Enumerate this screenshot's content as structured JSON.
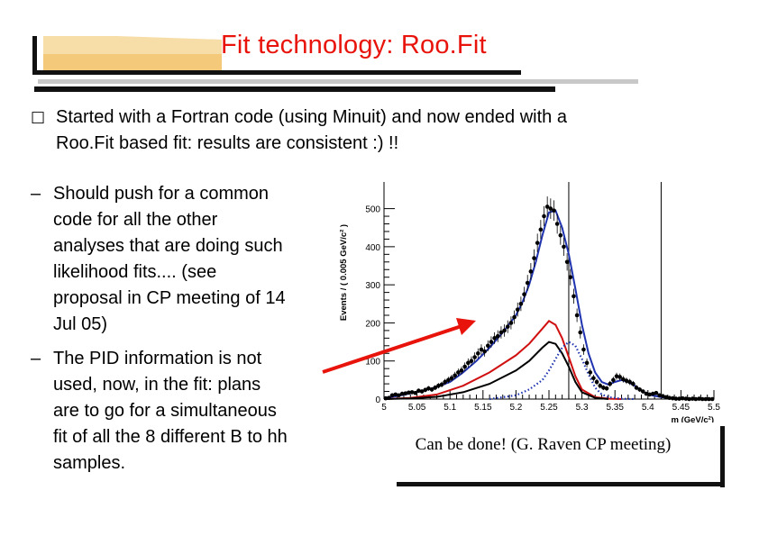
{
  "slide": {
    "title": "Fit technology: Roo.Fit",
    "bullet1_symbol": "□",
    "bullet1_lines": [
      "Started with a Fortran code (using Minuit) and now ended with a",
      "Roo.Fit based fit: results are consistent  :) !!"
    ],
    "sub1_symbol": "–",
    "sub1_lines": [
      "Should push for a common",
      "code for all the other",
      "analyses that are doing such",
      "likelihood fits.... (see",
      "proposal in CP meeting of 14",
      "Jul 05)"
    ],
    "sub2_symbol": "–",
    "sub2_lines": [
      "The PID information is not",
      "used, now, in the fit: plans",
      "are to go for a simultaneous",
      "fit of all the 8 different B to hh",
      "samples."
    ],
    "caption": "Can be done! (G. Raven CP meeting)",
    "arrow_color": "#e8140c"
  },
  "chart_data": {
    "type": "line",
    "ylabel": "Events / ( 0.005 GeV/c² )",
    "xlabel": "m  (GeV/c²)",
    "xlim": [
      5.0,
      5.5
    ],
    "ylim": [
      0,
      570
    ],
    "xticks": [
      "5",
      "5.05",
      "5.1",
      "5.15",
      "5.2",
      "5.25",
      "5.3",
      "5.35",
      "5.4",
      "5.45",
      "5.5"
    ],
    "yticks": [
      "0",
      "100",
      "200",
      "300",
      "400",
      "500"
    ],
    "vertical_lines": [
      5.28,
      5.42
    ],
    "data_points": {
      "x": [
        5.0,
        5.005,
        5.01,
        5.015,
        5.02,
        5.025,
        5.03,
        5.035,
        5.04,
        5.045,
        5.05,
        5.055,
        5.06,
        5.065,
        5.07,
        5.075,
        5.08,
        5.085,
        5.09,
        5.095,
        5.1,
        5.105,
        5.11,
        5.115,
        5.12,
        5.125,
        5.13,
        5.135,
        5.14,
        5.145,
        5.15,
        5.155,
        5.16,
        5.165,
        5.17,
        5.175,
        5.18,
        5.185,
        5.19,
        5.195,
        5.2,
        5.205,
        5.21,
        5.215,
        5.22,
        5.225,
        5.23,
        5.235,
        5.24,
        5.245,
        5.25,
        5.255,
        5.26,
        5.265,
        5.27,
        5.275,
        5.28,
        5.285,
        5.29,
        5.295,
        5.3,
        5.305,
        5.31,
        5.315,
        5.32,
        5.325,
        5.33,
        5.335,
        5.34,
        5.345,
        5.35,
        5.355,
        5.36,
        5.365,
        5.37,
        5.375,
        5.38,
        5.385,
        5.39,
        5.395,
        5.4,
        5.405,
        5.41,
        5.415,
        5.42,
        5.425,
        5.43,
        5.435,
        5.44,
        5.445,
        5.45,
        5.455,
        5.46,
        5.465,
        5.47,
        5.475,
        5.48,
        5.485,
        5.49,
        5.495
      ],
      "y": [
        2,
        3,
        10,
        12,
        10,
        14,
        15,
        17,
        18,
        16,
        22,
        20,
        24,
        28,
        25,
        30,
        35,
        38,
        45,
        50,
        55,
        62,
        70,
        75,
        85,
        95,
        100,
        110,
        120,
        130,
        125,
        140,
        150,
        160,
        165,
        175,
        180,
        190,
        200,
        215,
        235,
        250,
        275,
        305,
        335,
        370,
        410,
        445,
        480,
        505,
        500,
        495,
        460,
        430,
        400,
        360,
        320,
        270,
        220,
        175,
        130,
        95,
        70,
        55,
        45,
        35,
        30,
        28,
        40,
        50,
        60,
        58,
        52,
        48,
        45,
        40,
        30,
        25,
        20,
        14,
        12,
        14,
        16,
        10,
        8,
        5,
        3,
        2,
        1,
        1,
        2,
        1,
        0,
        1,
        0,
        1,
        0,
        0,
        0,
        0
      ]
    },
    "series": [
      {
        "color": "#1f33b0",
        "style": "solid",
        "x": [
          5.0,
          5.02,
          5.04,
          5.06,
          5.08,
          5.1,
          5.12,
          5.14,
          5.16,
          5.18,
          5.2,
          5.21,
          5.22,
          5.23,
          5.24,
          5.25,
          5.26,
          5.27,
          5.28,
          5.29,
          5.3,
          5.31,
          5.32,
          5.33,
          5.34,
          5.35,
          5.36,
          5.37,
          5.38,
          5.39,
          5.4,
          5.42,
          5.44,
          5.46,
          5.48,
          5.5
        ],
        "y": [
          3,
          8,
          15,
          22,
          32,
          45,
          70,
          100,
          135,
          175,
          220,
          255,
          300,
          360,
          430,
          490,
          495,
          450,
          380,
          290,
          195,
          120,
          70,
          45,
          38,
          45,
          50,
          45,
          35,
          22,
          12,
          5,
          2,
          1,
          0,
          0
        ]
      },
      {
        "color": "#d01010",
        "style": "solid",
        "x": [
          5.0,
          5.04,
          5.08,
          5.12,
          5.16,
          5.2,
          5.22,
          5.24,
          5.25,
          5.26,
          5.27,
          5.28,
          5.29,
          5.3,
          5.32,
          5.34,
          5.36
        ],
        "y": [
          0,
          3,
          12,
          35,
          70,
          115,
          145,
          185,
          205,
          195,
          160,
          110,
          60,
          25,
          5,
          1,
          0
        ]
      },
      {
        "color": "#000000",
        "style": "solid",
        "x": [
          5.0,
          5.04,
          5.08,
          5.12,
          5.16,
          5.2,
          5.22,
          5.24,
          5.25,
          5.26,
          5.27,
          5.28,
          5.29,
          5.3,
          5.32,
          5.34
        ],
        "y": [
          0,
          2,
          6,
          18,
          40,
          75,
          100,
          135,
          150,
          145,
          120,
          85,
          45,
          18,
          3,
          0
        ]
      },
      {
        "color": "#1f33b0",
        "style": "dotted",
        "x": [
          5.16,
          5.2,
          5.22,
          5.24,
          5.25,
          5.26,
          5.27,
          5.28,
          5.29,
          5.3,
          5.31,
          5.32,
          5.33,
          5.34,
          5.36,
          5.38
        ],
        "y": [
          0,
          10,
          25,
          50,
          75,
          105,
          135,
          150,
          140,
          105,
          65,
          30,
          12,
          5,
          1,
          0
        ]
      }
    ]
  }
}
